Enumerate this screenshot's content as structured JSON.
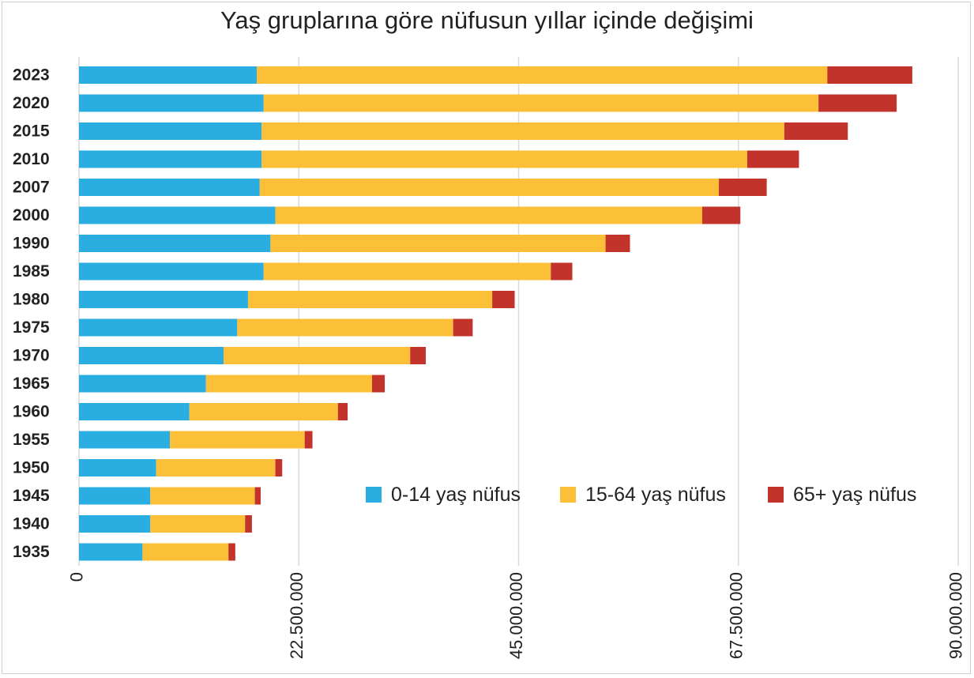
{
  "chart_data": {
    "type": "bar",
    "orientation": "horizontal",
    "stacked": true,
    "title": "Yaş gruplarına göre nüfusun yıllar içinde değişimi",
    "xlim": [
      0,
      90000000
    ],
    "xticks": [
      0,
      22500000,
      45000000,
      67500000,
      90000000
    ],
    "xtick_labels": [
      "0",
      "22.500.000",
      "45.000.000",
      "67.500.000",
      "90.000.000"
    ],
    "grid": true,
    "legend_position": "lower-right",
    "categories": [
      "2023",
      "2020",
      "2015",
      "2010",
      "2007",
      "2000",
      "1990",
      "1985",
      "1980",
      "1975",
      "1970",
      "1965",
      "1960",
      "1955",
      "1950",
      "1945",
      "1940",
      "1935"
    ],
    "series": [
      {
        "name": "0-14 yaş nüfus",
        "color": "#2aaee2",
        "values": [
          18200000,
          18900000,
          18700000,
          18700000,
          18500000,
          20100000,
          19600000,
          18900000,
          17300000,
          16200000,
          14800000,
          13000000,
          11300000,
          9300000,
          7900000,
          7300000,
          7300000,
          6500000
        ]
      },
      {
        "name": "15-64 yaş nüfus",
        "color": "#fcbf38",
        "values": [
          58400000,
          56800000,
          53500000,
          49700000,
          47000000,
          43700000,
          34300000,
          29400000,
          25000000,
          22100000,
          19100000,
          17000000,
          15200000,
          13800000,
          12200000,
          10700000,
          9700000,
          8800000
        ]
      },
      {
        "name": "65+ yaş nüfus",
        "color": "#c2342b",
        "values": [
          8700000,
          8000000,
          6500000,
          5300000,
          4900000,
          3900000,
          2500000,
          2200000,
          2300000,
          2000000,
          1600000,
          1300000,
          1000000,
          800000,
          700000,
          600000,
          700000,
          700000
        ]
      }
    ]
  }
}
